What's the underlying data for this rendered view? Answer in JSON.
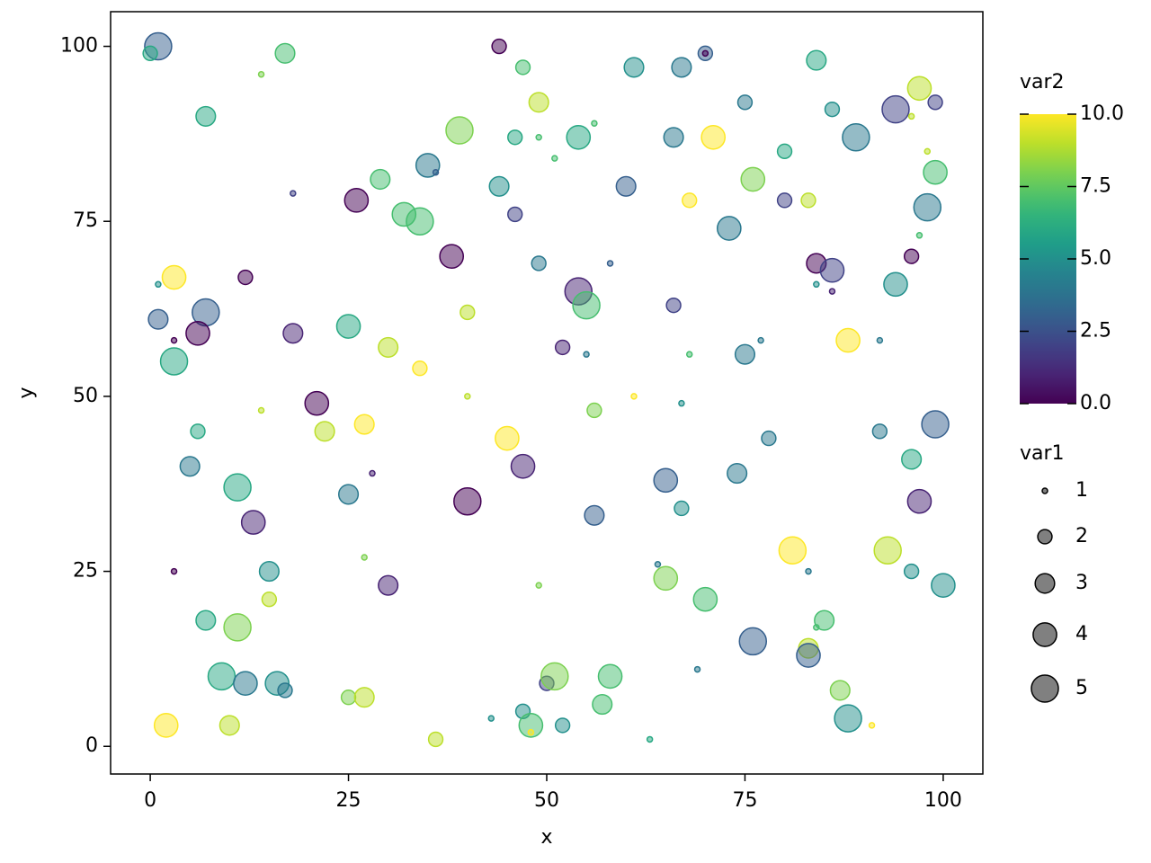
{
  "chart_data": {
    "type": "scatter",
    "x_label": "x",
    "y_label": "y",
    "xlim": [
      -5,
      105
    ],
    "ylim": [
      -3.95,
      104.95
    ],
    "xticks": [
      0,
      25,
      50,
      75,
      100
    ],
    "yticks": [
      0,
      25,
      50,
      75,
      100
    ],
    "x": [
      1,
      0,
      17,
      14,
      44,
      47,
      70,
      70,
      61,
      67,
      84,
      7,
      49,
      39,
      46,
      49,
      54,
      56,
      51,
      75,
      66,
      71,
      89,
      86,
      94,
      99,
      97,
      96,
      98,
      99,
      98,
      80,
      76,
      80,
      83,
      68,
      60,
      44,
      35,
      36,
      29,
      18,
      26,
      32,
      34,
      46,
      38,
      49,
      58,
      73,
      84,
      86,
      84,
      86,
      96,
      97,
      94,
      3,
      1,
      12,
      1,
      7,
      3,
      6,
      3,
      18,
      25,
      40,
      30,
      34,
      54,
      55,
      52,
      55,
      66,
      68,
      77,
      75,
      88,
      92,
      21,
      14,
      22,
      27,
      40,
      45,
      56,
      61,
      67,
      6,
      5,
      11,
      13,
      28,
      25,
      40,
      47,
      56,
      65,
      67,
      74,
      78,
      92,
      99,
      96,
      97,
      3,
      15,
      15,
      27,
      30,
      49,
      64,
      65,
      70,
      81,
      83,
      93,
      96,
      100,
      7,
      11,
      9,
      12,
      16,
      17,
      25,
      27,
      2,
      10,
      36,
      43,
      47,
      48,
      48,
      52,
      50,
      51,
      58,
      57,
      63,
      69,
      76,
      83,
      83,
      84,
      85,
      87,
      88,
      91
    ],
    "values": [
      100,
      99,
      99,
      96,
      100,
      97,
      99,
      99,
      97,
      97,
      98,
      90,
      92,
      88,
      87,
      87,
      87,
      89,
      84,
      92,
      87,
      87,
      87,
      91,
      91,
      92,
      94,
      90,
      85,
      82,
      77,
      85,
      81,
      78,
      78,
      78,
      80,
      80,
      83,
      82,
      81,
      79,
      78,
      76,
      75,
      76,
      70,
      69,
      69,
      74,
      69,
      68,
      66,
      65,
      70,
      73,
      66,
      67,
      66,
      67,
      61,
      62,
      58,
      59,
      55,
      59,
      60,
      62,
      57,
      54,
      65,
      63,
      57,
      56,
      63,
      56,
      58,
      56,
      58,
      58,
      49,
      48,
      45,
      46,
      50,
      44,
      48,
      50,
      49,
      45,
      40,
      37,
      32,
      39,
      36,
      35,
      40,
      33,
      38,
      34,
      39,
      44,
      45,
      46,
      41,
      35,
      25,
      25,
      21,
      27,
      23,
      23,
      26,
      24,
      21,
      28,
      25,
      28,
      25,
      23,
      18,
      17,
      10,
      9,
      9,
      8,
      7,
      7,
      3,
      3,
      1,
      4,
      5,
      3,
      2,
      3,
      9,
      10,
      10,
      6,
      1,
      11,
      15,
      14,
      13,
      17,
      18,
      8,
      4,
      3
    ],
    "size": [
      5,
      2,
      3,
      1,
      2,
      2,
      2,
      1,
      3,
      3,
      3,
      3,
      3,
      5,
      2,
      1,
      4,
      1,
      1,
      2,
      3,
      4,
      5,
      2,
      5,
      2,
      4,
      1,
      1,
      4,
      5,
      2,
      4,
      2,
      2,
      2,
      3,
      3,
      4,
      1,
      3,
      1,
      4,
      4,
      5,
      2,
      4,
      2,
      1,
      4,
      3,
      4,
      1,
      1,
      2,
      1,
      4,
      4,
      1,
      2,
      3,
      5,
      1,
      4,
      5,
      3,
      4,
      2,
      3,
      2,
      5,
      5,
      2,
      1,
      2,
      1,
      1,
      3,
      4,
      1,
      4,
      1,
      3,
      3,
      1,
      4,
      2,
      1,
      1,
      2,
      3,
      5,
      4,
      1,
      3,
      5,
      4,
      3,
      4,
      2,
      3,
      2,
      2,
      5,
      3,
      4,
      1,
      3,
      2,
      1,
      3,
      1,
      1,
      4,
      4,
      5,
      1,
      5,
      2,
      4,
      3,
      5,
      5,
      4,
      4,
      2,
      2,
      3,
      4,
      3,
      2,
      1,
      2,
      4,
      1,
      2,
      2,
      5,
      4,
      3,
      1,
      1,
      5,
      3,
      4,
      1,
      3,
      3,
      5,
      1
    ],
    "color_values": [
      3,
      6,
      7,
      8,
      0,
      7,
      3,
      0,
      5,
      4,
      6,
      6,
      9,
      8,
      6,
      7,
      6,
      7,
      7,
      4,
      4,
      10,
      4,
      5,
      2,
      2,
      9,
      9,
      9,
      7,
      4,
      6,
      8,
      2,
      9,
      10,
      3,
      5,
      4,
      3,
      7,
      2,
      0,
      7,
      7,
      2,
      0,
      4,
      3,
      4,
      0,
      2,
      5,
      1,
      0,
      7,
      5,
      10,
      5,
      0,
      3,
      3,
      0,
      0,
      6,
      1,
      6,
      9,
      9,
      10,
      1,
      7,
      1,
      4,
      2,
      7,
      4,
      4,
      10,
      4,
      0,
      9,
      9,
      10,
      9,
      10,
      8,
      10,
      5,
      6,
      4,
      6,
      1,
      1,
      4,
      0,
      1,
      3,
      3,
      5,
      4,
      4,
      4,
      3,
      6,
      1,
      0,
      5,
      9,
      8,
      1,
      8,
      4,
      8,
      7,
      10,
      4,
      9,
      5,
      5,
      6,
      8,
      6,
      4,
      5,
      4,
      8,
      9,
      10,
      9,
      9,
      5,
      5,
      7,
      10,
      5,
      2,
      8,
      7,
      7,
      6,
      4,
      3,
      9,
      3,
      7,
      7,
      8,
      5,
      10
    ],
    "colormap": "viridis",
    "color_legend": {
      "title": "var2",
      "lim": [
        0,
        10
      ],
      "ticks": [
        {
          "value": 0,
          "label": "0.0"
        },
        {
          "value": 2.5,
          "label": "2.5"
        },
        {
          "value": 5,
          "label": "5.0"
        },
        {
          "value": 7.5,
          "label": "7.5"
        },
        {
          "value": 10,
          "label": "10.0"
        }
      ]
    },
    "size_legend": {
      "title": "var1",
      "values": [
        1,
        2,
        3,
        4,
        5
      ]
    }
  }
}
